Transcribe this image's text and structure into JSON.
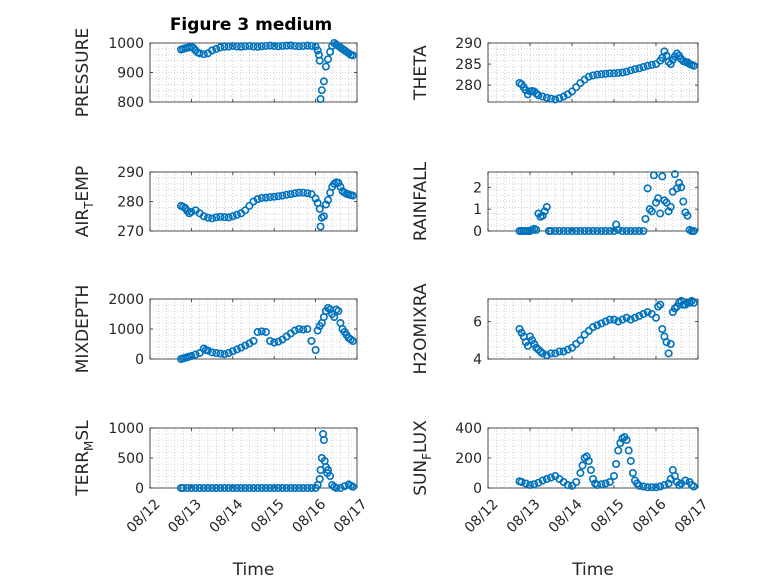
{
  "figure_title": "Figure 3 medium",
  "colors": {
    "marker": "#0072BD",
    "axis": "#262626",
    "grid": "#b0b0b0"
  },
  "chart_data": [
    {
      "type": "scatter",
      "title": "Figure 3 medium",
      "ylabel": "PRESSURE",
      "ylim": [
        800,
        1000
      ],
      "yticks": [
        800,
        900,
        1000
      ],
      "xlim": [
        0,
        5
      ],
      "xticks": [
        "08/12",
        "08/13",
        "08/14",
        "08/15",
        "08/16",
        "08/17"
      ],
      "grid": true,
      "x": [
        0.75,
        0.8,
        0.85,
        0.9,
        0.95,
        1.0,
        1.05,
        1.1,
        1.15,
        1.2,
        1.3,
        1.4,
        1.5,
        1.6,
        1.7,
        1.8,
        1.9,
        2.0,
        2.1,
        2.2,
        2.3,
        2.4,
        2.5,
        2.6,
        2.7,
        2.8,
        2.9,
        3.0,
        3.1,
        3.2,
        3.3,
        3.4,
        3.5,
        3.6,
        3.7,
        3.8,
        3.9,
        4.0,
        4.05,
        4.08,
        4.1,
        4.12,
        4.15,
        4.2,
        4.25,
        4.3,
        4.35,
        4.4,
        4.45,
        4.5,
        4.55,
        4.6,
        4.65,
        4.7,
        4.75,
        4.8,
        4.85,
        4.9
      ],
      "y": [
        978,
        980,
        982,
        984,
        985,
        987,
        983,
        975,
        968,
        965,
        962,
        965,
        975,
        980,
        985,
        987,
        988,
        990,
        988,
        987,
        989,
        990,
        988,
        987,
        989,
        990,
        991,
        990,
        989,
        990,
        991,
        992,
        990,
        989,
        990,
        991,
        990,
        988,
        975,
        960,
        940,
        810,
        840,
        870,
        920,
        945,
        970,
        990,
        1000,
        995,
        990,
        985,
        980,
        975,
        970,
        965,
        960,
        958
      ]
    },
    {
      "type": "scatter",
      "ylabel": "THETA",
      "ylim": [
        276,
        290
      ],
      "yticks": [
        280,
        285,
        290
      ],
      "xlim": [
        0,
        5
      ],
      "xticks": [
        "08/12",
        "08/13",
        "08/14",
        "08/15",
        "08/16",
        "08/17"
      ],
      "grid": true,
      "x": [
        0.75,
        0.8,
        0.85,
        0.9,
        0.95,
        1.0,
        1.05,
        1.1,
        1.15,
        1.2,
        1.3,
        1.4,
        1.5,
        1.6,
        1.7,
        1.8,
        1.9,
        2.0,
        2.1,
        2.2,
        2.3,
        2.4,
        2.5,
        2.6,
        2.7,
        2.8,
        2.9,
        3.0,
        3.1,
        3.2,
        3.3,
        3.4,
        3.5,
        3.6,
        3.7,
        3.8,
        3.9,
        4.0,
        4.1,
        4.15,
        4.2,
        4.25,
        4.3,
        4.35,
        4.4,
        4.45,
        4.5,
        4.55,
        4.6,
        4.65,
        4.7,
        4.75,
        4.8,
        4.85,
        4.9
      ],
      "y": [
        280.5,
        280.2,
        279.5,
        278.8,
        277.8,
        278.5,
        278.6,
        278.5,
        278.0,
        277.6,
        277.3,
        277.0,
        276.8,
        276.6,
        276.9,
        277.3,
        277.8,
        278.5,
        279.5,
        280.5,
        281.3,
        282.0,
        282.3,
        282.5,
        282.6,
        282.7,
        282.8,
        282.8,
        282.9,
        283.0,
        283.2,
        283.5,
        283.8,
        284.0,
        284.3,
        284.6,
        284.8,
        285.0,
        285.8,
        286.5,
        288.0,
        287.0,
        285.5,
        285.0,
        286.0,
        286.8,
        287.5,
        287.0,
        286.2,
        285.7,
        285.5,
        285.4,
        285.0,
        284.8,
        284.6
      ]
    },
    {
      "type": "scatter",
      "ylabel": "AIR_TEMP",
      "ylim": [
        270,
        290
      ],
      "yticks": [
        270,
        280,
        290
      ],
      "xlim": [
        0,
        5
      ],
      "xticks": [
        "08/12",
        "08/13",
        "08/14",
        "08/15",
        "08/16",
        "08/17"
      ],
      "grid": true,
      "x": [
        0.75,
        0.8,
        0.85,
        0.9,
        0.95,
        1.0,
        1.1,
        1.2,
        1.3,
        1.4,
        1.5,
        1.6,
        1.7,
        1.8,
        1.9,
        2.0,
        2.1,
        2.2,
        2.3,
        2.4,
        2.5,
        2.6,
        2.7,
        2.8,
        2.9,
        3.0,
        3.1,
        3.2,
        3.3,
        3.4,
        3.5,
        3.6,
        3.7,
        3.8,
        3.9,
        4.0,
        4.05,
        4.1,
        4.12,
        4.15,
        4.2,
        4.25,
        4.3,
        4.35,
        4.4,
        4.45,
        4.5,
        4.55,
        4.6,
        4.65,
        4.7,
        4.75,
        4.8,
        4.85,
        4.9
      ],
      "y": [
        278.5,
        278.2,
        277.8,
        276.8,
        276.0,
        276.5,
        277.0,
        276.0,
        275.0,
        274.5,
        274.3,
        274.6,
        274.8,
        274.7,
        274.6,
        275.0,
        275.5,
        276.0,
        277.0,
        278.5,
        280.0,
        280.8,
        281.2,
        281.3,
        281.5,
        281.6,
        281.8,
        282.0,
        282.3,
        282.5,
        282.8,
        283.0,
        283.0,
        282.8,
        282.5,
        281.0,
        279.5,
        277.5,
        271.5,
        274.5,
        275.0,
        279.0,
        280.5,
        283.0,
        285.0,
        286.0,
        286.5,
        286.3,
        285.0,
        283.5,
        283.0,
        282.6,
        282.4,
        282.2,
        282.0
      ]
    },
    {
      "type": "scatter",
      "ylabel": "RAINFALL",
      "ylim": [
        0,
        2.7
      ],
      "yticks": [
        0,
        1,
        2
      ],
      "xlim": [
        0,
        5
      ],
      "xticks": [
        "08/12",
        "08/13",
        "08/14",
        "08/15",
        "08/16",
        "08/17"
      ],
      "grid": true,
      "x": [
        0.75,
        0.8,
        0.85,
        0.9,
        0.95,
        1.0,
        1.05,
        1.1,
        1.15,
        1.2,
        1.25,
        1.3,
        1.35,
        1.4,
        1.45,
        1.5,
        1.6,
        1.7,
        1.8,
        1.9,
        2.0,
        2.1,
        2.2,
        2.3,
        2.4,
        2.5,
        2.6,
        2.7,
        2.8,
        2.9,
        3.0,
        3.05,
        3.1,
        3.2,
        3.3,
        3.4,
        3.5,
        3.6,
        3.7,
        3.75,
        3.8,
        3.85,
        3.9,
        3.95,
        4.0,
        4.05,
        4.1,
        4.15,
        4.2,
        4.25,
        4.3,
        4.35,
        4.4,
        4.45,
        4.5,
        4.55,
        4.6,
        4.65,
        4.7,
        4.75,
        4.8,
        4.85,
        4.9
      ],
      "y": [
        0,
        0,
        0,
        0,
        0,
        0,
        0.05,
        0.1,
        0.05,
        0.8,
        0.65,
        0.7,
        0.9,
        1.1,
        0,
        0,
        0,
        0,
        0,
        0,
        0,
        0,
        0,
        0,
        0,
        0,
        0,
        0,
        0,
        0,
        0,
        0.3,
        0.05,
        0,
        0,
        0,
        0,
        0,
        0,
        0.55,
        1.95,
        1.0,
        0.9,
        2.55,
        1.3,
        1.5,
        0.8,
        2.5,
        1.4,
        1.3,
        0.9,
        1.1,
        1.8,
        2.6,
        1.95,
        2.2,
        2.0,
        1.35,
        0.85,
        0.7,
        0.05,
        0,
        0
      ]
    },
    {
      "type": "scatter",
      "ylabel": "MIXDEPTH",
      "ylim": [
        0,
        2000
      ],
      "yticks": [
        0,
        1000,
        2000
      ],
      "xlim": [
        0,
        5
      ],
      "xticks": [
        "08/12",
        "08/13",
        "08/14",
        "08/15",
        "08/16",
        "08/17"
      ],
      "grid": true,
      "x": [
        0.75,
        0.8,
        0.85,
        0.9,
        0.95,
        1.0,
        1.1,
        1.2,
        1.3,
        1.35,
        1.4,
        1.5,
        1.6,
        1.7,
        1.8,
        1.9,
        2.0,
        2.1,
        2.2,
        2.3,
        2.4,
        2.5,
        2.6,
        2.7,
        2.8,
        2.9,
        3.0,
        3.1,
        3.2,
        3.3,
        3.4,
        3.5,
        3.6,
        3.7,
        3.8,
        3.9,
        4.0,
        4.05,
        4.1,
        4.15,
        4.2,
        4.25,
        4.3,
        4.35,
        4.4,
        4.45,
        4.5,
        4.55,
        4.6,
        4.65,
        4.7,
        4.75,
        4.8,
        4.85,
        4.9
      ],
      "y": [
        0,
        20,
        40,
        60,
        80,
        100,
        150,
        200,
        350,
        300,
        280,
        220,
        200,
        180,
        160,
        200,
        260,
        320,
        380,
        450,
        520,
        600,
        900,
        920,
        900,
        600,
        550,
        580,
        650,
        750,
        850,
        950,
        1000,
        980,
        1000,
        600,
        300,
        950,
        1100,
        1200,
        1400,
        1600,
        1700,
        1650,
        1500,
        1400,
        1650,
        1600,
        1200,
        1000,
        900,
        800,
        700,
        650,
        600
      ]
    },
    {
      "type": "scatter",
      "ylabel": "H2OMIXRA",
      "ylim": [
        4,
        7.2
      ],
      "yticks": [
        4,
        6
      ],
      "xlim": [
        0,
        5
      ],
      "xticks": [
        "08/12",
        "08/13",
        "08/14",
        "08/15",
        "08/16",
        "08/17"
      ],
      "grid": true,
      "x": [
        0.75,
        0.8,
        0.85,
        0.9,
        0.95,
        1.0,
        1.05,
        1.1,
        1.15,
        1.2,
        1.25,
        1.3,
        1.4,
        1.5,
        1.6,
        1.7,
        1.8,
        1.9,
        2.0,
        2.1,
        2.2,
        2.3,
        2.4,
        2.5,
        2.6,
        2.7,
        2.8,
        2.9,
        3.0,
        3.1,
        3.2,
        3.3,
        3.4,
        3.5,
        3.6,
        3.7,
        3.8,
        3.9,
        4.0,
        4.05,
        4.1,
        4.15,
        4.2,
        4.25,
        4.3,
        4.35,
        4.4,
        4.45,
        4.5,
        4.55,
        4.6,
        4.65,
        4.7,
        4.75,
        4.8,
        4.85,
        4.9
      ],
      "y": [
        5.6,
        5.4,
        5.2,
        4.9,
        4.7,
        5.2,
        5.0,
        4.8,
        4.6,
        4.5,
        4.4,
        4.3,
        4.2,
        4.3,
        4.3,
        4.4,
        4.4,
        4.5,
        4.6,
        4.8,
        5.0,
        5.3,
        5.5,
        5.7,
        5.8,
        5.9,
        6.0,
        6.1,
        6.1,
        6.0,
        6.1,
        6.2,
        6.1,
        6.2,
        6.3,
        6.4,
        6.5,
        6.4,
        6.2,
        6.8,
        6.9,
        5.6,
        5.2,
        4.9,
        4.3,
        4.8,
        6.5,
        6.7,
        6.8,
        7.0,
        7.1,
        6.9,
        6.9,
        7.0,
        7.0,
        7.1,
        7.0
      ]
    },
    {
      "type": "scatter",
      "ylabel": "TERR_MSL",
      "ylim": [
        0,
        1000
      ],
      "yticks": [
        0,
        500,
        1000
      ],
      "xlim": [
        0,
        5
      ],
      "xticks": [
        "08/12",
        "08/13",
        "08/14",
        "08/15",
        "08/16",
        "08/17"
      ],
      "xlabel": "Time",
      "grid": true,
      "x": [
        0.75,
        0.8,
        0.9,
        1.0,
        1.1,
        1.2,
        1.3,
        1.4,
        1.5,
        1.6,
        1.7,
        1.8,
        1.9,
        2.0,
        2.1,
        2.2,
        2.3,
        2.4,
        2.5,
        2.6,
        2.7,
        2.8,
        2.9,
        3.0,
        3.1,
        3.2,
        3.3,
        3.4,
        3.5,
        3.6,
        3.7,
        3.8,
        3.9,
        4.0,
        4.05,
        4.1,
        4.12,
        4.15,
        4.18,
        4.2,
        4.22,
        4.25,
        4.28,
        4.3,
        4.35,
        4.4,
        4.45,
        4.5,
        4.6,
        4.7,
        4.8,
        4.85,
        4.9
      ],
      "y": [
        0,
        0,
        0,
        0,
        0,
        0,
        0,
        0,
        0,
        0,
        0,
        0,
        0,
        0,
        0,
        0,
        0,
        0,
        0,
        0,
        0,
        0,
        0,
        0,
        0,
        0,
        0,
        0,
        0,
        0,
        0,
        0,
        0,
        0,
        50,
        150,
        300,
        500,
        900,
        800,
        450,
        350,
        250,
        300,
        200,
        50,
        20,
        0,
        0,
        30,
        60,
        40,
        20
      ]
    },
    {
      "type": "scatter",
      "ylabel": "SUN_FLUX",
      "ylim": [
        0,
        400
      ],
      "yticks": [
        0,
        200,
        400
      ],
      "xlim": [
        0,
        5
      ],
      "xticks": [
        "08/12",
        "08/13",
        "08/14",
        "08/15",
        "08/16",
        "08/17"
      ],
      "xlabel": "Time",
      "grid": true,
      "x": [
        0.75,
        0.8,
        0.9,
        1.0,
        1.1,
        1.2,
        1.3,
        1.4,
        1.5,
        1.6,
        1.7,
        1.8,
        1.9,
        2.0,
        2.1,
        2.2,
        2.25,
        2.3,
        2.35,
        2.4,
        2.45,
        2.5,
        2.55,
        2.6,
        2.7,
        2.8,
        2.9,
        3.0,
        3.05,
        3.1,
        3.15,
        3.2,
        3.25,
        3.3,
        3.35,
        3.4,
        3.45,
        3.5,
        3.55,
        3.6,
        3.7,
        3.8,
        3.9,
        4.0,
        4.1,
        4.2,
        4.3,
        4.35,
        4.4,
        4.45,
        4.5,
        4.55,
        4.6,
        4.7,
        4.8,
        4.85,
        4.9
      ],
      "y": [
        45,
        40,
        30,
        20,
        25,
        35,
        50,
        60,
        70,
        80,
        60,
        40,
        20,
        15,
        40,
        100,
        150,
        200,
        210,
        180,
        120,
        60,
        30,
        20,
        25,
        30,
        40,
        80,
        160,
        250,
        300,
        330,
        340,
        320,
        250,
        180,
        100,
        50,
        30,
        15,
        10,
        5,
        5,
        5,
        10,
        20,
        30,
        60,
        120,
        80,
        40,
        20,
        30,
        50,
        40,
        20,
        10
      ]
    }
  ]
}
